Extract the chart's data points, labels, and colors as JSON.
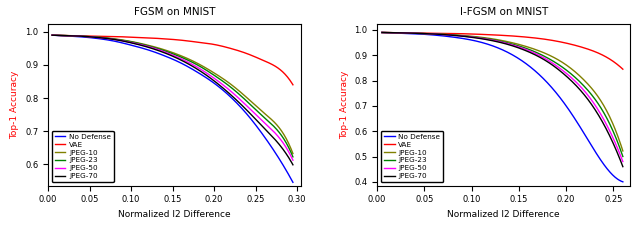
{
  "title_left": "FGSM on MNIST",
  "title_right": "I-FGSM on MNIST",
  "xlabel": "Normalized l2 Difference",
  "ylabel": "Top-1 Accuracy",
  "ylabel_color": "red",
  "fgsm": {
    "xlim": [
      0.0,
      0.305
    ],
    "ylim": [
      0.535,
      1.025
    ],
    "xticks": [
      0.0,
      0.05,
      0.1,
      0.15,
      0.2,
      0.25,
      0.3
    ],
    "yticks": [
      0.6,
      0.7,
      0.8,
      0.9,
      1.0
    ],
    "no_defense": {
      "x": [
        0.005,
        0.02,
        0.04,
        0.06,
        0.08,
        0.1,
        0.12,
        0.14,
        0.16,
        0.18,
        0.2,
        0.22,
        0.24,
        0.26,
        0.28,
        0.295
      ],
      "y": [
        0.99,
        0.988,
        0.985,
        0.98,
        0.972,
        0.96,
        0.946,
        0.928,
        0.906,
        0.878,
        0.845,
        0.803,
        0.75,
        0.685,
        0.61,
        0.545
      ],
      "color": "blue"
    },
    "vae": {
      "x": [
        0.005,
        0.02,
        0.04,
        0.06,
        0.08,
        0.1,
        0.12,
        0.14,
        0.16,
        0.18,
        0.2,
        0.22,
        0.24,
        0.26,
        0.28,
        0.295
      ],
      "y": [
        0.99,
        0.989,
        0.988,
        0.987,
        0.986,
        0.984,
        0.982,
        0.979,
        0.975,
        0.969,
        0.962,
        0.95,
        0.934,
        0.913,
        0.885,
        0.84
      ],
      "color": "red"
    },
    "jpeg10": {
      "x": [
        0.005,
        0.02,
        0.04,
        0.06,
        0.08,
        0.1,
        0.12,
        0.14,
        0.16,
        0.18,
        0.2,
        0.22,
        0.24,
        0.26,
        0.28,
        0.295
      ],
      "y": [
        0.99,
        0.989,
        0.987,
        0.984,
        0.979,
        0.971,
        0.96,
        0.946,
        0.928,
        0.905,
        0.876,
        0.842,
        0.8,
        0.755,
        0.705,
        0.632
      ],
      "color": "#808000"
    },
    "jpeg23": {
      "x": [
        0.005,
        0.02,
        0.04,
        0.06,
        0.08,
        0.1,
        0.12,
        0.14,
        0.16,
        0.18,
        0.2,
        0.22,
        0.24,
        0.26,
        0.28,
        0.295
      ],
      "y": [
        0.99,
        0.989,
        0.987,
        0.984,
        0.978,
        0.97,
        0.958,
        0.943,
        0.924,
        0.9,
        0.869,
        0.833,
        0.789,
        0.742,
        0.691,
        0.622
      ],
      "color": "green"
    },
    "jpeg50": {
      "x": [
        0.005,
        0.02,
        0.04,
        0.06,
        0.08,
        0.1,
        0.12,
        0.14,
        0.16,
        0.18,
        0.2,
        0.22,
        0.24,
        0.26,
        0.28,
        0.295
      ],
      "y": [
        0.99,
        0.989,
        0.987,
        0.983,
        0.977,
        0.968,
        0.956,
        0.94,
        0.919,
        0.893,
        0.86,
        0.821,
        0.775,
        0.727,
        0.675,
        0.612
      ],
      "color": "magenta"
    },
    "jpeg70": {
      "x": [
        0.005,
        0.02,
        0.04,
        0.06,
        0.08,
        0.1,
        0.12,
        0.14,
        0.16,
        0.18,
        0.2,
        0.22,
        0.24,
        0.26,
        0.28,
        0.295
      ],
      "y": [
        0.99,
        0.989,
        0.987,
        0.983,
        0.977,
        0.967,
        0.954,
        0.937,
        0.915,
        0.887,
        0.852,
        0.81,
        0.762,
        0.71,
        0.655,
        0.598
      ],
      "color": "black"
    }
  },
  "ifgsm": {
    "xlim": [
      0.0,
      0.268
    ],
    "ylim": [
      0.385,
      1.025
    ],
    "xticks": [
      0.0,
      0.05,
      0.1,
      0.15,
      0.2,
      0.25
    ],
    "yticks": [
      0.4,
      0.5,
      0.6,
      0.7,
      0.8,
      0.9,
      1.0
    ],
    "no_defense": {
      "x": [
        0.005,
        0.02,
        0.04,
        0.06,
        0.08,
        0.1,
        0.12,
        0.14,
        0.16,
        0.18,
        0.2,
        0.22,
        0.24,
        0.26
      ],
      "y": [
        0.99,
        0.988,
        0.985,
        0.98,
        0.972,
        0.96,
        0.94,
        0.908,
        0.86,
        0.792,
        0.7,
        0.585,
        0.468,
        0.4
      ],
      "color": "blue"
    },
    "vae": {
      "x": [
        0.005,
        0.02,
        0.04,
        0.06,
        0.08,
        0.1,
        0.12,
        0.14,
        0.16,
        0.18,
        0.2,
        0.22,
        0.24,
        0.26
      ],
      "y": [
        0.99,
        0.989,
        0.988,
        0.987,
        0.986,
        0.984,
        0.981,
        0.977,
        0.971,
        0.962,
        0.948,
        0.928,
        0.898,
        0.845
      ],
      "color": "red"
    },
    "jpeg10": {
      "x": [
        0.005,
        0.02,
        0.04,
        0.06,
        0.08,
        0.1,
        0.12,
        0.14,
        0.16,
        0.18,
        0.2,
        0.22,
        0.24,
        0.26
      ],
      "y": [
        0.99,
        0.989,
        0.987,
        0.985,
        0.981,
        0.975,
        0.966,
        0.952,
        0.932,
        0.904,
        0.862,
        0.798,
        0.7,
        0.522
      ],
      "color": "#808000"
    },
    "jpeg23": {
      "x": [
        0.005,
        0.02,
        0.04,
        0.06,
        0.08,
        0.1,
        0.12,
        0.14,
        0.16,
        0.18,
        0.2,
        0.22,
        0.24,
        0.26
      ],
      "y": [
        0.99,
        0.989,
        0.987,
        0.984,
        0.98,
        0.973,
        0.963,
        0.947,
        0.924,
        0.89,
        0.842,
        0.774,
        0.672,
        0.5
      ],
      "color": "green"
    },
    "jpeg50": {
      "x": [
        0.005,
        0.02,
        0.04,
        0.06,
        0.08,
        0.1,
        0.12,
        0.14,
        0.16,
        0.18,
        0.2,
        0.22,
        0.24,
        0.26
      ],
      "y": [
        0.99,
        0.989,
        0.987,
        0.984,
        0.979,
        0.972,
        0.961,
        0.944,
        0.919,
        0.882,
        0.829,
        0.756,
        0.645,
        0.48
      ],
      "color": "magenta"
    },
    "jpeg70": {
      "x": [
        0.005,
        0.02,
        0.04,
        0.06,
        0.08,
        0.1,
        0.12,
        0.14,
        0.16,
        0.18,
        0.2,
        0.22,
        0.24,
        0.26
      ],
      "y": [
        0.99,
        0.989,
        0.987,
        0.984,
        0.979,
        0.971,
        0.959,
        0.941,
        0.914,
        0.875,
        0.818,
        0.74,
        0.626,
        0.46
      ],
      "color": "black"
    }
  },
  "legend_labels": [
    "No Defense",
    "VAE",
    "JPEG-10",
    "JPEG-23",
    "JPEG-50",
    "JPEG-70"
  ],
  "legend_colors": [
    "blue",
    "red",
    "#808000",
    "green",
    "magenta",
    "black"
  ]
}
